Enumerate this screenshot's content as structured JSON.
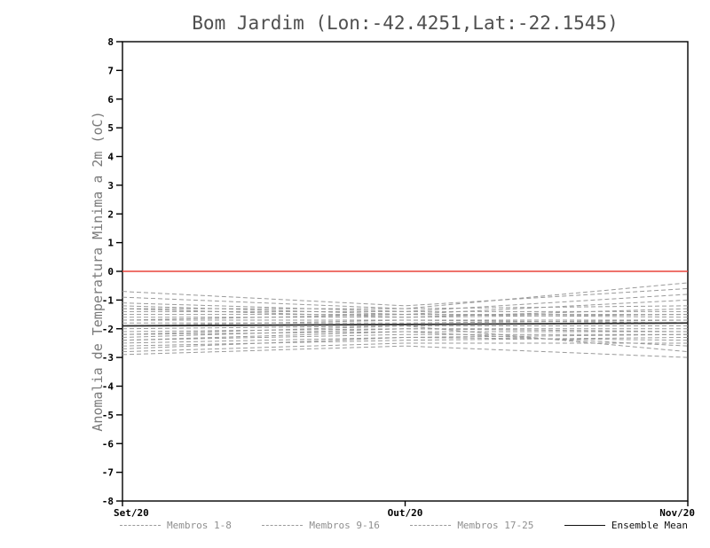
{
  "chart_data": {
    "type": "line",
    "title": "Bom Jardim (Lon:-42.4251,Lat:-22.1545)",
    "ylabel": "Anomalia de Temperatura Minima a 2m (oC)",
    "xlabel": "",
    "x": [
      "Set/20",
      "Out/20",
      "Nov/20"
    ],
    "ylim": [
      -8,
      8
    ],
    "ytick_step": 1,
    "grid": false,
    "legend_position": "bottom",
    "zero_line": {
      "y": 0,
      "color": "#e8433b"
    },
    "colors": {
      "member": "#9a9a9a",
      "mean": "#2b2b2b",
      "zero": "#e8433b",
      "frame": "#000000"
    },
    "series": [
      {
        "name": "Membro 1",
        "group": "1-8",
        "values": [
          -0.7,
          -1.2,
          -0.6
        ]
      },
      {
        "name": "Membro 2",
        "group": "1-8",
        "values": [
          -0.9,
          -1.3,
          -0.4
        ]
      },
      {
        "name": "Membro 3",
        "group": "1-8",
        "values": [
          -1.1,
          -1.4,
          -0.8
        ]
      },
      {
        "name": "Membro 4",
        "group": "1-8",
        "values": [
          -1.2,
          -1.5,
          -1.0
        ]
      },
      {
        "name": "Membro 5",
        "group": "1-8",
        "values": [
          -1.3,
          -1.3,
          -1.2
        ]
      },
      {
        "name": "Membro 6",
        "group": "1-8",
        "values": [
          -1.3,
          -1.6,
          -1.3
        ]
      },
      {
        "name": "Membro 7",
        "group": "1-8",
        "values": [
          -1.4,
          -1.4,
          -1.4
        ]
      },
      {
        "name": "Membro 8",
        "group": "1-8",
        "values": [
          -1.5,
          -1.5,
          -1.5
        ]
      },
      {
        "name": "Membro 9",
        "group": "9-16",
        "values": [
          -1.6,
          -1.6,
          -1.5
        ]
      },
      {
        "name": "Membro 10",
        "group": "9-16",
        "values": [
          -1.7,
          -1.5,
          -1.6
        ]
      },
      {
        "name": "Membro 11",
        "group": "9-16",
        "values": [
          -1.7,
          -1.7,
          -1.7
        ]
      },
      {
        "name": "Membro 12",
        "group": "9-16",
        "values": [
          -1.8,
          -1.8,
          -1.7
        ]
      },
      {
        "name": "Membro 13",
        "group": "9-16",
        "values": [
          -1.9,
          -1.7,
          -1.8
        ]
      },
      {
        "name": "Membro 14",
        "group": "9-16",
        "values": [
          -2.0,
          -1.9,
          -1.9
        ]
      },
      {
        "name": "Membro 15",
        "group": "9-16",
        "values": [
          -2.1,
          -2.0,
          -2.0
        ]
      },
      {
        "name": "Membro 16",
        "group": "9-16",
        "values": [
          -2.2,
          -2.1,
          -2.1
        ]
      },
      {
        "name": "Membro 17",
        "group": "17-25",
        "values": [
          -2.3,
          -2.0,
          -2.1
        ]
      },
      {
        "name": "Membro 18",
        "group": "17-25",
        "values": [
          -2.4,
          -2.2,
          -2.2
        ]
      },
      {
        "name": "Membro 19",
        "group": "17-25",
        "values": [
          -2.5,
          -2.3,
          -2.2
        ]
      },
      {
        "name": "Membro 20",
        "group": "17-25",
        "values": [
          -2.6,
          -2.4,
          -2.3
        ]
      },
      {
        "name": "Membro 21",
        "group": "17-25",
        "values": [
          -2.7,
          -2.3,
          -2.4
        ]
      },
      {
        "name": "Membro 22",
        "group": "17-25",
        "values": [
          -2.8,
          -2.5,
          -2.5
        ]
      },
      {
        "name": "Membro 23",
        "group": "17-25",
        "values": [
          -2.9,
          -2.6,
          -3.0
        ]
      },
      {
        "name": "Membro 24",
        "group": "17-25",
        "values": [
          -2.4,
          -2.1,
          -2.6
        ]
      },
      {
        "name": "Membro 25",
        "group": "17-25",
        "values": [
          -2.2,
          -1.9,
          -2.8
        ]
      },
      {
        "name": "Ensemble Mean",
        "group": "mean",
        "values": [
          -1.9,
          -1.85,
          -1.8
        ]
      }
    ],
    "legend": [
      {
        "label": "Membros 1-8",
        "style": "dashed",
        "color": "#9a9a9a",
        "text_color": "#8f8f8f"
      },
      {
        "label": "Membros 9-16",
        "style": "dashed",
        "color": "#9a9a9a",
        "text_color": "#8f8f8f"
      },
      {
        "label": "Membros 17-25",
        "style": "dashed",
        "color": "#9a9a9a",
        "text_color": "#8f8f8f"
      },
      {
        "label": "Ensemble Mean",
        "style": "solid",
        "color": "#111111",
        "text_color": "#111111"
      }
    ]
  }
}
